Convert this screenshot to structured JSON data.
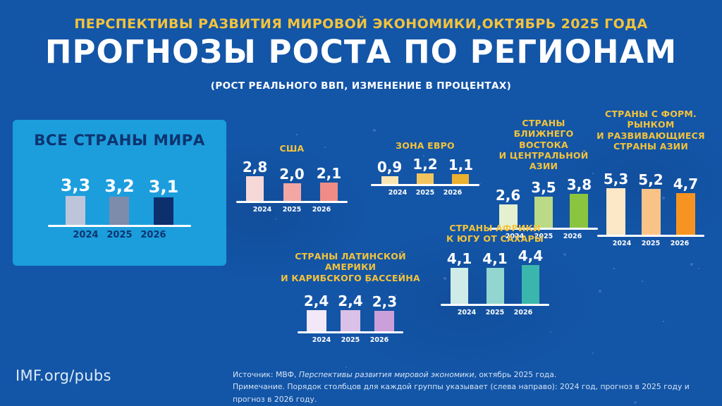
{
  "header": {
    "kicker": "ПЕРСПЕКТИВЫ РАЗВИТИЯ МИРОВОЙ ЭКОНОМИКИ,ОКТЯБРЬ 2025 ГОДА",
    "title": "ПРОГНОЗЫ РОСТА ПО РЕГИОНАМ",
    "subtitle": "(РОСТ РЕАЛЬНОГО ВВП, ИЗМЕНЕНИЕ В ПРОЦЕНТАХ)"
  },
  "footer": {
    "link": "IMF.org/pubs",
    "source_prefix": "Источник: МВФ, ",
    "source_italic": "Перспективы развития мировой экономики",
    "source_suffix": ", октябрь 2025 года.",
    "note": "Примечание. Порядок столбцов для каждой группы указывает (слева направо): 2024 год, прогноз в 2025 году и прогноз в 2026 году."
  },
  "colors": {
    "background": "#1355a7",
    "panel": "#1c9edd",
    "accent_yellow": "#f3c33c",
    "navy": "#0d3470",
    "white": "#ffffff"
  },
  "chart_data": {
    "type": "bar",
    "title": "ПРОГНОЗЫ РОСТА ПО РЕГИОНАМ",
    "subtitle": "Рост реального ВВП, изменение в процентах",
    "categories": [
      "2024",
      "2025",
      "2026"
    ],
    "ylim": [
      0,
      6
    ],
    "legend_position": "none",
    "grid": false,
    "groups": [
      {
        "id": "world",
        "title": "ВСЕ СТРАНЫ МИРА",
        "values": [
          3.3,
          3.2,
          3.1
        ],
        "labels": [
          "3,3",
          "3,2",
          "3,1"
        ],
        "colors": [
          "#bcc5da",
          "#7e8cab",
          "#0e2f6e"
        ]
      },
      {
        "id": "usa",
        "title": "США",
        "values": [
          2.8,
          2.0,
          2.1
        ],
        "labels": [
          "2,8",
          "2,0",
          "2,1"
        ],
        "colors": [
          "#f7d8d8",
          "#f2a7a4",
          "#ef8c86"
        ]
      },
      {
        "id": "euro",
        "title": "ЗОНА ЕВРО",
        "values": [
          0.9,
          1.2,
          1.1
        ],
        "labels": [
          "0,9",
          "1,2",
          "1,1"
        ],
        "colors": [
          "#f8e5b2",
          "#f3c55f",
          "#ecb02f"
        ]
      },
      {
        "id": "mideast",
        "title": "СТРАНЫ\nБЛИЖНЕГО ВОСТОКА\nИ ЦЕНТРАЛЬНОЙ АЗИИ",
        "values": [
          2.6,
          3.5,
          3.8
        ],
        "labels": [
          "2,6",
          "3,5",
          "3,8"
        ],
        "colors": [
          "#e4f0d0",
          "#bada85",
          "#8bc540"
        ]
      },
      {
        "id": "asia",
        "title": "СТРАНЫ С ФОРМ. РЫНКОМ\nИ РАЗВИВАЮЩИЕСЯ\nСТРАНЫ АЗИИ",
        "values": [
          5.3,
          5.2,
          4.7
        ],
        "labels": [
          "5,3",
          "5,2",
          "4,7"
        ],
        "colors": [
          "#fce7c6",
          "#f9c388",
          "#f79421"
        ]
      },
      {
        "id": "latam",
        "title": "СТРАНЫ ЛАТИНСКОЙ АМЕРИКИ\nИ КАРИБСКОГО БАССЕЙНА",
        "values": [
          2.4,
          2.4,
          2.3
        ],
        "labels": [
          "2,4",
          "2,4",
          "2,3"
        ],
        "colors": [
          "#f2e8f7",
          "#dbc0e7",
          "#cba0da"
        ]
      },
      {
        "id": "africa",
        "title": "СТРАНЫ АФРИКИ\nК ЮГУ ОТ САХАРЫ",
        "values": [
          4.1,
          4.1,
          4.4
        ],
        "labels": [
          "4,1",
          "4,1",
          "4,4"
        ],
        "colors": [
          "#cfebe8",
          "#93d6cf",
          "#3bb6ad"
        ]
      }
    ]
  }
}
